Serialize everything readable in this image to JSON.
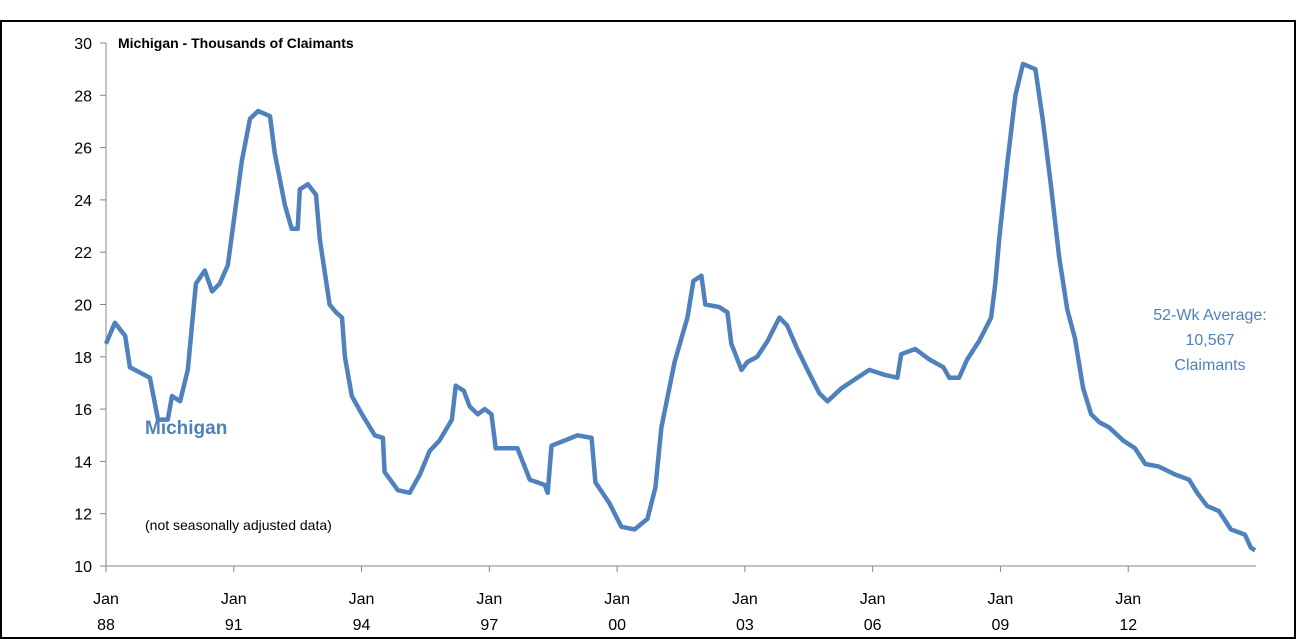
{
  "chart_data": {
    "type": "line",
    "subtitle": "Michigan - Thousands of Claimants",
    "annotations": [
      "Michigan",
      "(not seasonally adjusted data)",
      "52-Wk Average:",
      "10,567",
      "Claimants"
    ],
    "x": [
      1988.0,
      1988.21,
      1988.45,
      1988.56,
      1989.03,
      1989.22,
      1989.45,
      1989.55,
      1989.74,
      1989.92,
      1990.11,
      1990.32,
      1990.49,
      1990.67,
      1990.86,
      1991.0,
      1991.19,
      1991.38,
      1991.57,
      1991.85,
      1991.96,
      1992.2,
      1992.36,
      1992.5,
      1992.55,
      1992.74,
      1992.93,
      1993.02,
      1993.25,
      1993.4,
      1993.54,
      1993.61,
      1993.77,
      1994.01,
      1994.31,
      1994.5,
      1994.54,
      1994.85,
      1995.13,
      1995.37,
      1995.6,
      1995.83,
      1996.12,
      1996.21,
      1996.4,
      1996.54,
      1996.73,
      1996.89,
      1997.05,
      1997.15,
      1997.36,
      1997.66,
      1997.95,
      1998.3,
      1998.37,
      1998.46,
      1998.77,
      1999.07,
      1999.4,
      1999.49,
      1999.82,
      2000.1,
      2000.41,
      2000.71,
      2000.9,
      2001.04,
      2001.35,
      2001.65,
      2001.79,
      2001.98,
      2002.07,
      2002.4,
      2002.59,
      2002.68,
      2002.92,
      2003.06,
      2003.29,
      2003.53,
      2003.81,
      2003.99,
      2004.23,
      2004.47,
      2004.75,
      2004.94,
      2005.27,
      2005.64,
      2005.92,
      2006.3,
      2006.58,
      2006.67,
      2007.0,
      2007.33,
      2007.66,
      2007.8,
      2008.03,
      2008.22,
      2008.5,
      2008.78,
      2008.88,
      2008.97,
      2009.16,
      2009.35,
      2009.53,
      2009.82,
      2010.0,
      2010.19,
      2010.38,
      2010.57,
      2010.75,
      2010.94,
      2011.13,
      2011.32,
      2011.55,
      2011.88,
      2012.16,
      2012.4,
      2012.72,
      2013.1,
      2013.43,
      2013.62,
      2013.85,
      2014.13,
      2014.41,
      2014.74,
      2014.88,
      2014.98
    ],
    "series": [
      {
        "name": "Michigan",
        "color": "#4f81bd",
        "values": [
          18.5,
          19.3,
          18.8,
          17.6,
          17.2,
          15.6,
          15.6,
          16.5,
          16.3,
          17.5,
          20.8,
          21.3,
          20.5,
          20.8,
          21.5,
          23.2,
          25.5,
          27.1,
          27.4,
          27.2,
          25.8,
          23.8,
          22.9,
          22.9,
          24.4,
          24.6,
          24.2,
          22.5,
          20.0,
          19.7,
          19.5,
          18.0,
          16.5,
          15.8,
          15.0,
          14.9,
          13.6,
          12.9,
          12.8,
          13.5,
          14.4,
          14.8,
          15.6,
          16.9,
          16.7,
          16.1,
          15.8,
          16.0,
          15.8,
          14.5,
          14.5,
          14.5,
          13.3,
          13.1,
          12.8,
          14.6,
          14.8,
          15.0,
          14.9,
          13.2,
          12.4,
          11.5,
          11.4,
          11.8,
          13.0,
          15.3,
          17.8,
          19.5,
          20.9,
          21.1,
          20.0,
          19.9,
          19.7,
          18.5,
          17.5,
          17.8,
          18.0,
          18.6,
          19.5,
          19.2,
          18.3,
          17.5,
          16.6,
          16.3,
          16.8,
          17.2,
          17.5,
          17.3,
          17.2,
          18.1,
          18.3,
          17.9,
          17.6,
          17.2,
          17.2,
          17.9,
          18.6,
          19.5,
          20.8,
          22.5,
          25.4,
          28.0,
          29.2,
          29.0,
          27.0,
          24.5,
          21.8,
          19.8,
          18.7,
          16.8,
          15.8,
          15.5,
          15.3,
          14.8,
          14.5,
          13.9,
          13.8,
          13.5,
          13.3,
          12.8,
          12.3,
          12.1,
          11.4,
          11.2,
          10.7,
          10.6
        ]
      }
    ],
    "xlim": [
      1988,
      2015
    ],
    "xticks": [
      {
        "value": 1988,
        "label": "Jan 88"
      },
      {
        "value": 1991,
        "label": "Jan 91"
      },
      {
        "value": 1994,
        "label": "Jan 94"
      },
      {
        "value": 1997,
        "label": "Jan 97"
      },
      {
        "value": 2000,
        "label": "Jan 00"
      },
      {
        "value": 2003,
        "label": "Jan 03"
      },
      {
        "value": 2006,
        "label": "Jan 06"
      },
      {
        "value": 2009,
        "label": "Jan 09"
      },
      {
        "value": 2012,
        "label": "Jan 12"
      }
    ],
    "ylim": [
      10,
      30
    ],
    "yticks": [
      10,
      12,
      14,
      16,
      18,
      20,
      22,
      24,
      26,
      28,
      30
    ],
    "grid": false
  }
}
